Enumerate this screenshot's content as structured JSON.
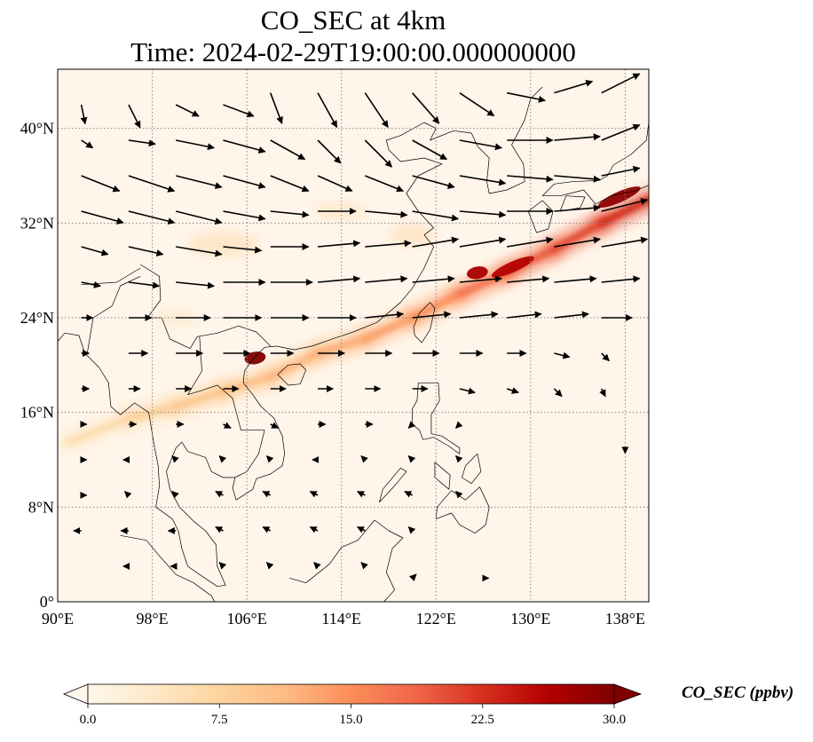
{
  "title": {
    "line1": "CO_SEC at 4km",
    "line2": "Time: 2024-02-29T19:00:00.000000000"
  },
  "map": {
    "projection": "PlateCarree",
    "lon_range": [
      90,
      140
    ],
    "lat_range": [
      0,
      45
    ],
    "lon_ticks": [
      {
        "value": 90,
        "label": "90°E"
      },
      {
        "value": 98,
        "label": "98°E"
      },
      {
        "value": 106,
        "label": "106°E"
      },
      {
        "value": 114,
        "label": "114°E"
      },
      {
        "value": 122,
        "label": "122°E"
      },
      {
        "value": 130,
        "label": "130°E"
      },
      {
        "value": 138,
        "label": "138°E"
      }
    ],
    "lat_ticks": [
      {
        "value": 0,
        "label": "0°"
      },
      {
        "value": 8,
        "label": "8°N"
      },
      {
        "value": 16,
        "label": "16°N"
      },
      {
        "value": 24,
        "label": "24°N"
      },
      {
        "value": 32,
        "label": "32°N"
      },
      {
        "value": 40,
        "label": "40°N"
      }
    ],
    "gridlines": "dotted",
    "colors": {
      "background": "#fff5ea",
      "coastline": "#000000",
      "gridline": "#888888",
      "wind_vector": "#000000"
    }
  },
  "colorbar": {
    "label": "CO_SEC (ppbv)",
    "min": 0.0,
    "max": 30.0,
    "extend": "both",
    "ticks": [
      "0.0",
      "7.5",
      "15.0",
      "22.5",
      "30.0"
    ],
    "colormap": "OrRd",
    "stops": [
      "#fff7ec",
      "#fee8c8",
      "#fdd49e",
      "#fdbb84",
      "#fc8d59",
      "#ef6548",
      "#d7301f",
      "#b30000",
      "#7f0000"
    ]
  },
  "plume": {
    "description_values": [
      {
        "lon": 91,
        "lat": 13.5,
        "value": 3
      },
      {
        "lon": 96,
        "lat": 15.5,
        "value": 5
      },
      {
        "lon": 100,
        "lat": 16.5,
        "value": 7
      },
      {
        "lon": 104,
        "lat": 17.8,
        "value": 8
      },
      {
        "lon": 108,
        "lat": 19.0,
        "value": 9
      },
      {
        "lon": 112,
        "lat": 21.0,
        "value": 10
      },
      {
        "lon": 116,
        "lat": 22.2,
        "value": 11
      },
      {
        "lon": 120,
        "lat": 24.0,
        "value": 12
      },
      {
        "lon": 124,
        "lat": 26.0,
        "value": 14
      },
      {
        "lon": 128,
        "lat": 27.8,
        "value": 17
      },
      {
        "lon": 132,
        "lat": 29.8,
        "value": 18
      },
      {
        "lon": 136,
        "lat": 32.0,
        "value": 20
      },
      {
        "lon": 140,
        "lat": 34.0,
        "value": 22
      }
    ],
    "hotspots": [
      {
        "lon": 106.7,
        "lat": 20.6,
        "value": 30
      },
      {
        "lon": 125.5,
        "lat": 27.8,
        "value": 27
      },
      {
        "lon": 128.5,
        "lat": 28.3,
        "value": 26
      },
      {
        "lon": 137.5,
        "lat": 34.2,
        "value": 29
      }
    ]
  },
  "wind_vectors": {
    "u_scale_note": "arrows in data units (u,v) m/s",
    "grid": [
      {
        "lon": 92,
        "lat": 42,
        "u": 1,
        "v": -5
      },
      {
        "lon": 96,
        "lat": 42,
        "u": 3,
        "v": -6
      },
      {
        "lon": 100,
        "lat": 42,
        "u": 6,
        "v": -3
      },
      {
        "lon": 104,
        "lat": 42,
        "u": 8,
        "v": -3
      },
      {
        "lon": 108,
        "lat": 43,
        "u": 3,
        "v": -8
      },
      {
        "lon": 112,
        "lat": 43,
        "u": 5,
        "v": -9
      },
      {
        "lon": 116,
        "lat": 43,
        "u": 6,
        "v": -9
      },
      {
        "lon": 120,
        "lat": 43,
        "u": 7,
        "v": -8
      },
      {
        "lon": 124,
        "lat": 43,
        "u": 9,
        "v": -6
      },
      {
        "lon": 128,
        "lat": 43,
        "u": 10,
        "v": -2
      },
      {
        "lon": 132,
        "lat": 43,
        "u": 10,
        "v": 3
      },
      {
        "lon": 136,
        "lat": 43,
        "u": 10,
        "v": 5
      },
      {
        "lon": 92,
        "lat": 39,
        "u": 3,
        "v": -2
      },
      {
        "lon": 96,
        "lat": 39,
        "u": 7,
        "v": -1
      },
      {
        "lon": 100,
        "lat": 39,
        "u": 10,
        "v": -2
      },
      {
        "lon": 104,
        "lat": 39,
        "u": 11,
        "v": -3
      },
      {
        "lon": 108,
        "lat": 39,
        "u": 9,
        "v": -5
      },
      {
        "lon": 112,
        "lat": 39,
        "u": 6,
        "v": -6
      },
      {
        "lon": 116,
        "lat": 39,
        "u": 7,
        "v": -7
      },
      {
        "lon": 120,
        "lat": 39,
        "u": 9,
        "v": -5
      },
      {
        "lon": 124,
        "lat": 39,
        "u": 11,
        "v": -2
      },
      {
        "lon": 128,
        "lat": 39,
        "u": 12,
        "v": 0
      },
      {
        "lon": 132,
        "lat": 39,
        "u": 12,
        "v": 1
      },
      {
        "lon": 136,
        "lat": 39,
        "u": 10,
        "v": 4
      },
      {
        "lon": 92,
        "lat": 36,
        "u": 10,
        "v": -4
      },
      {
        "lon": 96,
        "lat": 36,
        "u": 12,
        "v": -4
      },
      {
        "lon": 100,
        "lat": 36,
        "u": 12,
        "v": -3
      },
      {
        "lon": 104,
        "lat": 36,
        "u": 11,
        "v": -3
      },
      {
        "lon": 108,
        "lat": 36,
        "u": 10,
        "v": -4
      },
      {
        "lon": 112,
        "lat": 36,
        "u": 9,
        "v": -4
      },
      {
        "lon": 116,
        "lat": 36,
        "u": 10,
        "v": -4
      },
      {
        "lon": 120,
        "lat": 36,
        "u": 11,
        "v": -3
      },
      {
        "lon": 124,
        "lat": 36,
        "u": 12,
        "v": -2
      },
      {
        "lon": 128,
        "lat": 36,
        "u": 12,
        "v": -1
      },
      {
        "lon": 132,
        "lat": 36,
        "u": 12,
        "v": -1
      },
      {
        "lon": 136,
        "lat": 36,
        "u": 10,
        "v": 2
      },
      {
        "lon": 92,
        "lat": 33,
        "u": 11,
        "v": -3
      },
      {
        "lon": 96,
        "lat": 33,
        "u": 12,
        "v": -3
      },
      {
        "lon": 100,
        "lat": 33,
        "u": 12,
        "v": -3
      },
      {
        "lon": 104,
        "lat": 33,
        "u": 11,
        "v": -2
      },
      {
        "lon": 108,
        "lat": 33,
        "u": 10,
        "v": -1
      },
      {
        "lon": 112,
        "lat": 33,
        "u": 10,
        "v": 0
      },
      {
        "lon": 116,
        "lat": 33,
        "u": 11,
        "v": -1
      },
      {
        "lon": 120,
        "lat": 33,
        "u": 12,
        "v": -2
      },
      {
        "lon": 124,
        "lat": 33,
        "u": 12,
        "v": -1
      },
      {
        "lon": 128,
        "lat": 33,
        "u": 12,
        "v": 0
      },
      {
        "lon": 132,
        "lat": 33,
        "u": 12,
        "v": 1
      },
      {
        "lon": 136,
        "lat": 33,
        "u": 12,
        "v": 3
      },
      {
        "lon": 92,
        "lat": 30,
        "u": 7,
        "v": -2
      },
      {
        "lon": 96,
        "lat": 30,
        "u": 9,
        "v": -2
      },
      {
        "lon": 100,
        "lat": 30,
        "u": 12,
        "v": -2
      },
      {
        "lon": 104,
        "lat": 30,
        "u": 10,
        "v": -1
      },
      {
        "lon": 108,
        "lat": 30,
        "u": 10,
        "v": 0
      },
      {
        "lon": 112,
        "lat": 30,
        "u": 11,
        "v": 1
      },
      {
        "lon": 116,
        "lat": 30,
        "u": 12,
        "v": 1
      },
      {
        "lon": 120,
        "lat": 30,
        "u": 12,
        "v": 2
      },
      {
        "lon": 124,
        "lat": 30,
        "u": 12,
        "v": 2
      },
      {
        "lon": 128,
        "lat": 30,
        "u": 12,
        "v": 2
      },
      {
        "lon": 132,
        "lat": 30,
        "u": 12,
        "v": 2
      },
      {
        "lon": 136,
        "lat": 30,
        "u": 12,
        "v": 2
      },
      {
        "lon": 92,
        "lat": 27,
        "u": 5,
        "v": -1
      },
      {
        "lon": 96,
        "lat": 27,
        "u": 8,
        "v": -1
      },
      {
        "lon": 100,
        "lat": 27,
        "u": 10,
        "v": -1
      },
      {
        "lon": 104,
        "lat": 27,
        "u": 11,
        "v": 0
      },
      {
        "lon": 108,
        "lat": 27,
        "u": 11,
        "v": 0
      },
      {
        "lon": 112,
        "lat": 27,
        "u": 11,
        "v": 1
      },
      {
        "lon": 116,
        "lat": 27,
        "u": 11,
        "v": 1
      },
      {
        "lon": 120,
        "lat": 27,
        "u": 11,
        "v": 1
      },
      {
        "lon": 124,
        "lat": 27,
        "u": 11,
        "v": 1
      },
      {
        "lon": 128,
        "lat": 27,
        "u": 11,
        "v": 1
      },
      {
        "lon": 132,
        "lat": 27,
        "u": 11,
        "v": 1
      },
      {
        "lon": 136,
        "lat": 27,
        "u": 10,
        "v": 1
      },
      {
        "lon": 92,
        "lat": 24,
        "u": 3,
        "v": 0
      },
      {
        "lon": 96,
        "lat": 24,
        "u": 6,
        "v": 0
      },
      {
        "lon": 100,
        "lat": 24,
        "u": 9,
        "v": 0
      },
      {
        "lon": 104,
        "lat": 24,
        "u": 10,
        "v": 0
      },
      {
        "lon": 108,
        "lat": 24,
        "u": 10,
        "v": 0
      },
      {
        "lon": 112,
        "lat": 24,
        "u": 10,
        "v": 0
      },
      {
        "lon": 116,
        "lat": 24,
        "u": 10,
        "v": 1
      },
      {
        "lon": 120,
        "lat": 24,
        "u": 10,
        "v": 1
      },
      {
        "lon": 124,
        "lat": 24,
        "u": 10,
        "v": 1
      },
      {
        "lon": 128,
        "lat": 24,
        "u": 9,
        "v": 1
      },
      {
        "lon": 132,
        "lat": 24,
        "u": 9,
        "v": 1
      },
      {
        "lon": 136,
        "lat": 24,
        "u": 8,
        "v": 0
      },
      {
        "lon": 92,
        "lat": 21,
        "u": 2,
        "v": 0
      },
      {
        "lon": 96,
        "lat": 21,
        "u": 5,
        "v": 0
      },
      {
        "lon": 100,
        "lat": 21,
        "u": 7,
        "v": 0
      },
      {
        "lon": 104,
        "lat": 21,
        "u": 7,
        "v": 0
      },
      {
        "lon": 108,
        "lat": 21,
        "u": 6,
        "v": 0
      },
      {
        "lon": 112,
        "lat": 21,
        "u": 7,
        "v": 0
      },
      {
        "lon": 116,
        "lat": 21,
        "u": 7,
        "v": 0
      },
      {
        "lon": 120,
        "lat": 21,
        "u": 7,
        "v": 0
      },
      {
        "lon": 124,
        "lat": 21,
        "u": 6,
        "v": 0
      },
      {
        "lon": 128,
        "lat": 21,
        "u": 5,
        "v": 0
      },
      {
        "lon": 132,
        "lat": 21,
        "u": 4,
        "v": -1
      },
      {
        "lon": 136,
        "lat": 21,
        "u": 2,
        "v": -2
      },
      {
        "lon": 92,
        "lat": 18,
        "u": 2,
        "v": 0
      },
      {
        "lon": 96,
        "lat": 18,
        "u": 3,
        "v": 0
      },
      {
        "lon": 100,
        "lat": 18,
        "u": 4,
        "v": 0
      },
      {
        "lon": 104,
        "lat": 18,
        "u": 4,
        "v": 0
      },
      {
        "lon": 108,
        "lat": 18,
        "u": 4,
        "v": 0
      },
      {
        "lon": 112,
        "lat": 18,
        "u": 4,
        "v": 0
      },
      {
        "lon": 116,
        "lat": 18,
        "u": 4,
        "v": 0
      },
      {
        "lon": 120,
        "lat": 18,
        "u": 4,
        "v": 0
      },
      {
        "lon": 124,
        "lat": 18,
        "u": 4,
        "v": -1
      },
      {
        "lon": 128,
        "lat": 18,
        "u": 3,
        "v": -1
      },
      {
        "lon": 132,
        "lat": 18,
        "u": 2,
        "v": -2
      },
      {
        "lon": 136,
        "lat": 18,
        "u": 1,
        "v": -2
      },
      {
        "lon": 92,
        "lat": 15,
        "u": 1,
        "v": 0
      },
      {
        "lon": 96,
        "lat": 15,
        "u": 2,
        "v": 0
      },
      {
        "lon": 100,
        "lat": 15,
        "u": 2,
        "v": 0
      },
      {
        "lon": 104,
        "lat": 15,
        "u": 2,
        "v": -1
      },
      {
        "lon": 108,
        "lat": 15,
        "u": 2,
        "v": -1
      },
      {
        "lon": 112,
        "lat": 15,
        "u": 2,
        "v": 0
      },
      {
        "lon": 116,
        "lat": 15,
        "u": 2,
        "v": 0
      },
      {
        "lon": 120,
        "lat": 15,
        "u": -1,
        "v": -1
      },
      {
        "lon": 124,
        "lat": 15,
        "u": -1,
        "v": -1
      },
      {
        "lon": 138,
        "lat": 13,
        "u": 0,
        "v": -1
      },
      {
        "lon": 92,
        "lat": 12,
        "u": 1,
        "v": 0
      },
      {
        "lon": 96,
        "lat": 12,
        "u": -1,
        "v": 0
      },
      {
        "lon": 100,
        "lat": 12,
        "u": -1,
        "v": 1
      },
      {
        "lon": 104,
        "lat": 12,
        "u": -1,
        "v": 1
      },
      {
        "lon": 108,
        "lat": 12,
        "u": -1,
        "v": 1
      },
      {
        "lon": 112,
        "lat": 12,
        "u": -1,
        "v": 0
      },
      {
        "lon": 116,
        "lat": 12,
        "u": -1,
        "v": 1
      },
      {
        "lon": 120,
        "lat": 12,
        "u": -1,
        "v": 1
      },
      {
        "lon": 124,
        "lat": 12,
        "u": -1,
        "v": 1
      },
      {
        "lon": 92,
        "lat": 9,
        "u": 1,
        "v": 0
      },
      {
        "lon": 96,
        "lat": 9,
        "u": -1,
        "v": 1
      },
      {
        "lon": 100,
        "lat": 9,
        "u": -1,
        "v": 1
      },
      {
        "lon": 104,
        "lat": 9,
        "u": -2,
        "v": 1
      },
      {
        "lon": 108,
        "lat": 9,
        "u": -2,
        "v": 1
      },
      {
        "lon": 112,
        "lat": 9,
        "u": -2,
        "v": 1
      },
      {
        "lon": 116,
        "lat": 9,
        "u": -2,
        "v": 1
      },
      {
        "lon": 120,
        "lat": 9,
        "u": -2,
        "v": 1
      },
      {
        "lon": 124,
        "lat": 9,
        "u": -1,
        "v": 1
      },
      {
        "lon": 92,
        "lat": 6,
        "u": -2,
        "v": 0
      },
      {
        "lon": 96,
        "lat": 6,
        "u": -2,
        "v": 0
      },
      {
        "lon": 100,
        "lat": 6,
        "u": -2,
        "v": 0
      },
      {
        "lon": 104,
        "lat": 6,
        "u": -2,
        "v": 1
      },
      {
        "lon": 108,
        "lat": 6,
        "u": -2,
        "v": 1
      },
      {
        "lon": 112,
        "lat": 6,
        "u": -2,
        "v": 1
      },
      {
        "lon": 116,
        "lat": 6,
        "u": -2,
        "v": 1
      },
      {
        "lon": 120,
        "lat": 6,
        "u": -1,
        "v": 1
      },
      {
        "lon": 96,
        "lat": 3,
        "u": -1,
        "v": 0
      },
      {
        "lon": 100,
        "lat": 3,
        "u": -1,
        "v": 0
      },
      {
        "lon": 104,
        "lat": 3,
        "u": -1,
        "v": 1
      },
      {
        "lon": 108,
        "lat": 3,
        "u": -1,
        "v": 1
      },
      {
        "lon": 112,
        "lat": 3,
        "u": -1,
        "v": 1
      },
      {
        "lon": 116,
        "lat": 3,
        "u": -1,
        "v": 1
      },
      {
        "lon": 120,
        "lat": 2,
        "u": 1,
        "v": 1
      },
      {
        "lon": 126,
        "lat": 2,
        "u": 1,
        "v": 0
      }
    ]
  }
}
